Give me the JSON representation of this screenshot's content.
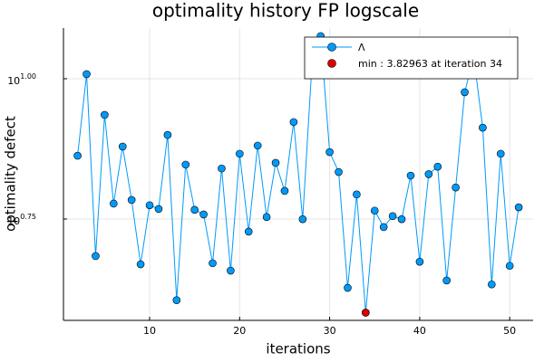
{
  "chart_data": {
    "type": "line",
    "title": "optimality history FP logscale",
    "x_label": "iterations",
    "y_label": "optimality defect",
    "y_log": true,
    "grid": true,
    "legend": "top-right",
    "xlim": [
      0.43,
      52.6
    ],
    "ylim": [
      3.71,
      12.31
    ],
    "xticks": [
      10,
      20,
      30,
      40,
      50
    ],
    "yticks": [
      {
        "value": 10,
        "label": "10",
        "exponent": "1.00"
      },
      {
        "value": 5.6234,
        "label": "10",
        "exponent": "0.75"
      }
    ],
    "series": [
      {
        "name": "Λ",
        "color": "#009af9",
        "mode": "lines+markers",
        "x": [
          2,
          3,
          4,
          5,
          6,
          7,
          8,
          9,
          10,
          11,
          12,
          13,
          14,
          15,
          16,
          17,
          18,
          19,
          20,
          21,
          22,
          23,
          24,
          25,
          26,
          27,
          28,
          29,
          30,
          31,
          32,
          33,
          34,
          35,
          36,
          37,
          38,
          39,
          40,
          41,
          42,
          43,
          44,
          45,
          46,
          47,
          48,
          49,
          50,
          51
        ],
        "values": [
          7.29,
          10.19,
          4.83,
          8.62,
          5.99,
          7.57,
          6.08,
          4.67,
          5.95,
          5.86,
          7.94,
          4.03,
          7.03,
          5.84,
          5.73,
          4.69,
          6.92,
          4.55,
          7.35,
          5.34,
          7.6,
          5.67,
          7.08,
          6.31,
          8.37,
          5.62,
          10.38,
          11.91,
          7.4,
          6.82,
          4.24,
          6.22,
          3.82963,
          5.82,
          5.44,
          5.69,
          5.62,
          6.72,
          4.72,
          6.76,
          6.97,
          4.37,
          6.4,
          9.46,
          10.93,
          8.18,
          4.3,
          7.35,
          4.64,
          5.9
        ]
      },
      {
        "name": "min : 3.82963 at iteration 34",
        "color": "#e00000",
        "mode": "markers",
        "x": [
          34
        ],
        "values": [
          3.82963
        ]
      }
    ]
  }
}
